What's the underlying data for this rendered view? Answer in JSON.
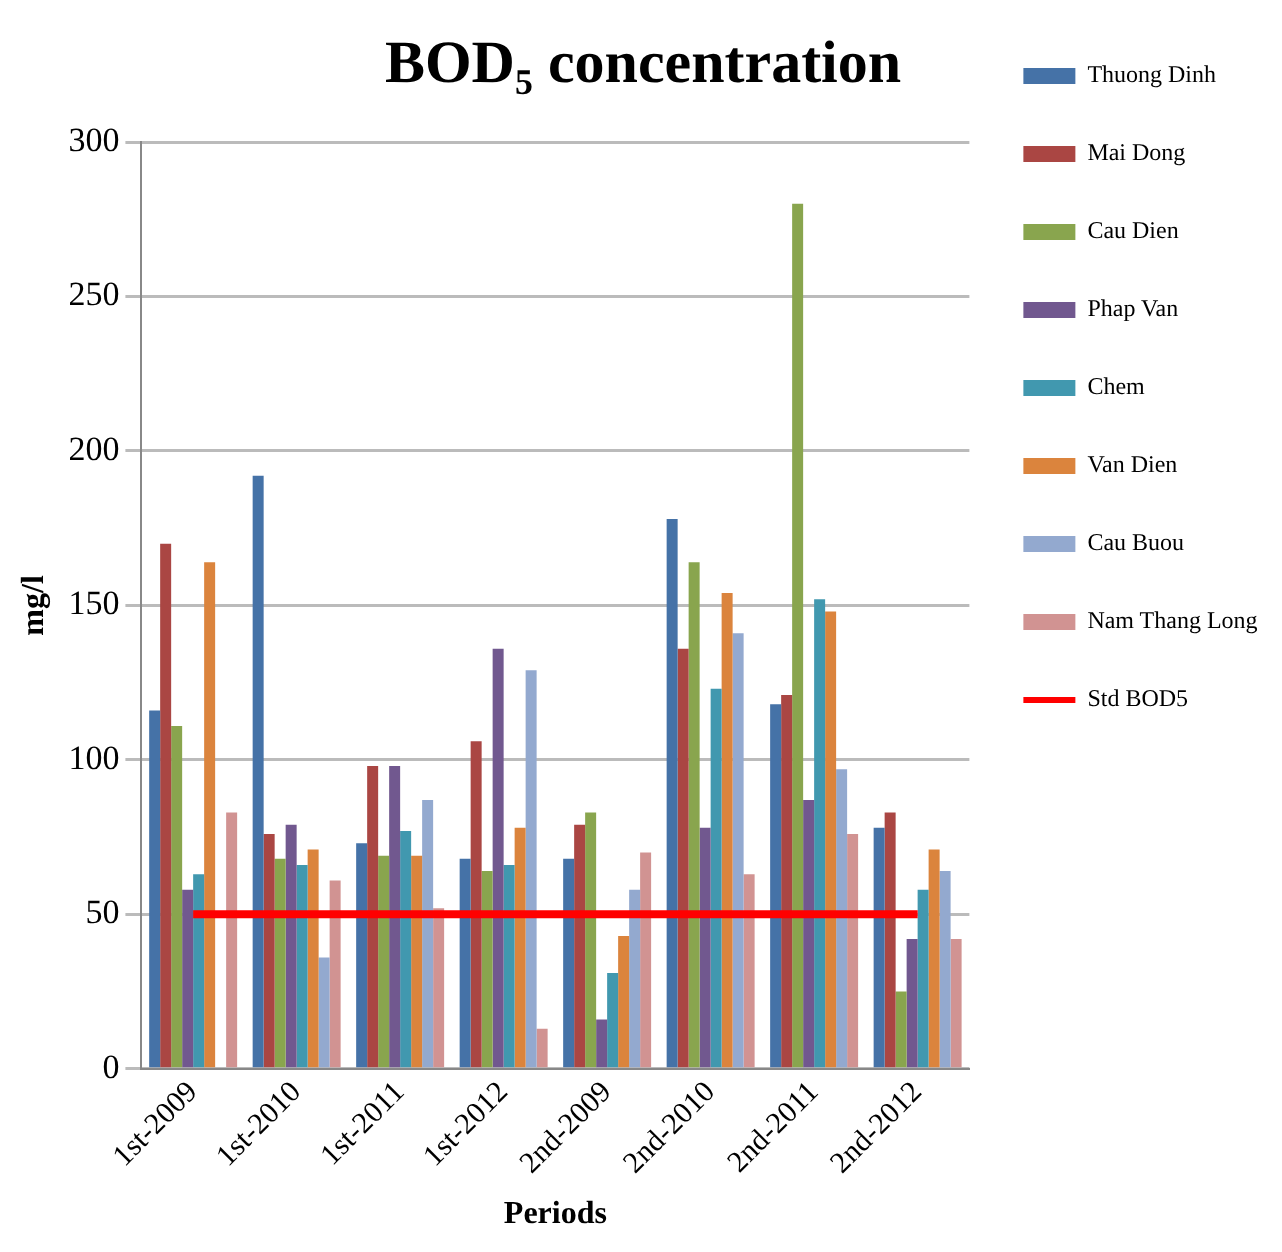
{
  "chart_data": {
    "type": "bar",
    "title": "BOD₅ concentration",
    "xlabel": "Periods",
    "ylabel": "mg/l",
    "categories": [
      "1st-2009",
      "1st-2010",
      "1st-2011",
      "1st-2012",
      "2nd-2009",
      "2nd-2010",
      "2nd-2011",
      "2nd-2012"
    ],
    "series": [
      {
        "name": "Thuong Dinh",
        "color": "#4572a7",
        "values": [
          116,
          192,
          73,
          68,
          68,
          178,
          118,
          78
        ]
      },
      {
        "name": "Mai Dong",
        "color": "#aa4643",
        "values": [
          170,
          76,
          98,
          106,
          79,
          136,
          121,
          83
        ]
      },
      {
        "name": "Cau Dien",
        "color": "#89a54e",
        "values": [
          111,
          68,
          69,
          64,
          83,
          164,
          280,
          25
        ]
      },
      {
        "name": "Phap Van",
        "color": "#71588f",
        "values": [
          58,
          79,
          98,
          136,
          16,
          78,
          87,
          42
        ]
      },
      {
        "name": "Chem",
        "color": "#4198af",
        "values": [
          63,
          66,
          77,
          66,
          31,
          123,
          152,
          58
        ]
      },
      {
        "name": "Van Dien",
        "color": "#db843d",
        "values": [
          164,
          71,
          69,
          78,
          43,
          154,
          148,
          71
        ]
      },
      {
        "name": "Cau Buou",
        "color": "#93a9cf",
        "values": [
          null,
          36,
          87,
          129,
          58,
          141,
          97,
          64
        ]
      },
      {
        "name": "Nam Thang Long",
        "color": "#d19392",
        "values": [
          83,
          61,
          52,
          13,
          70,
          63,
          76,
          42
        ]
      },
      {
        "name": "Std BOD5",
        "type": "line",
        "color": "#ff0000",
        "values": [
          50,
          50,
          50,
          50,
          50,
          50,
          50,
          50
        ]
      }
    ],
    "ylim": [
      0,
      300
    ],
    "yticks": [
      0,
      50,
      100,
      150,
      200,
      250,
      300
    ],
    "grid": "y",
    "legend": "right",
    "marker": "none"
  }
}
